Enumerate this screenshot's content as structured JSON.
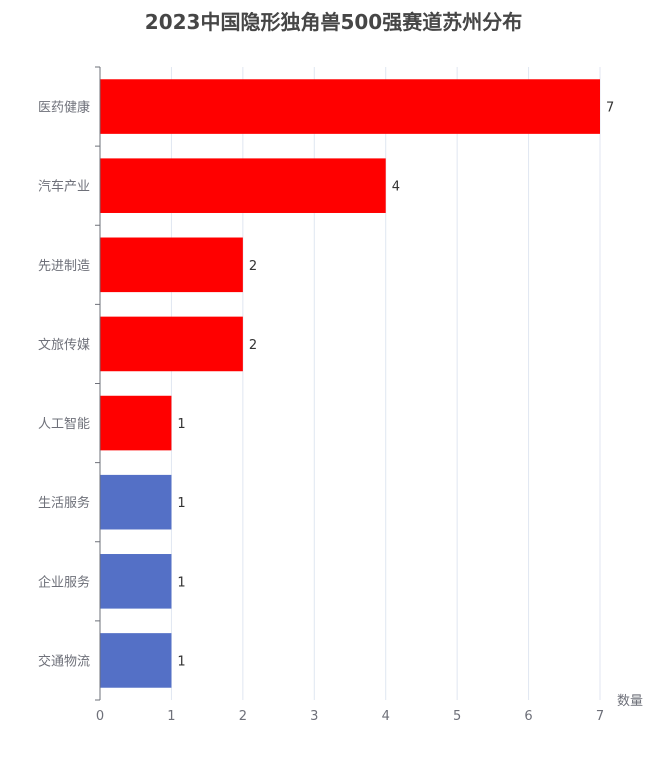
{
  "chart_data": {
    "type": "bar",
    "orientation": "horizontal",
    "title": "2023中国隐形独角兽500强赛道苏州分布",
    "xlabel": "数量",
    "ylabel": "",
    "xlim": [
      0,
      7
    ],
    "x_ticks": [
      "0",
      "1",
      "2",
      "3",
      "4",
      "5",
      "6",
      "7"
    ],
    "categories": [
      "医药健康",
      "汽车产业",
      "先进制造",
      "文旅传媒",
      "人工智能",
      "生活服务",
      "企业服务",
      "交通物流"
    ],
    "values": [
      7,
      4,
      2,
      2,
      1,
      1,
      1,
      1
    ],
    "colors": [
      "#ff0000",
      "#ff0000",
      "#ff0000",
      "#ff0000",
      "#ff0000",
      "#5470c6",
      "#5470c6",
      "#5470c6"
    ],
    "grid": "vertical",
    "data_labels": true
  }
}
